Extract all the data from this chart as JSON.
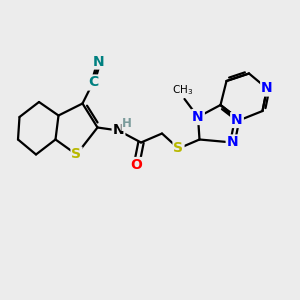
{
  "bg_color": "#ececec",
  "bond_color": "#000000",
  "bond_width": 1.6,
  "atom_colors": {
    "S": "#b8b800",
    "N": "#0000ff",
    "O": "#ff0000",
    "C_cyan": "#008080",
    "H": "#7a9a9a",
    "default": "#000000"
  },
  "font_size_atoms": 10,
  "font_size_small": 8.5
}
